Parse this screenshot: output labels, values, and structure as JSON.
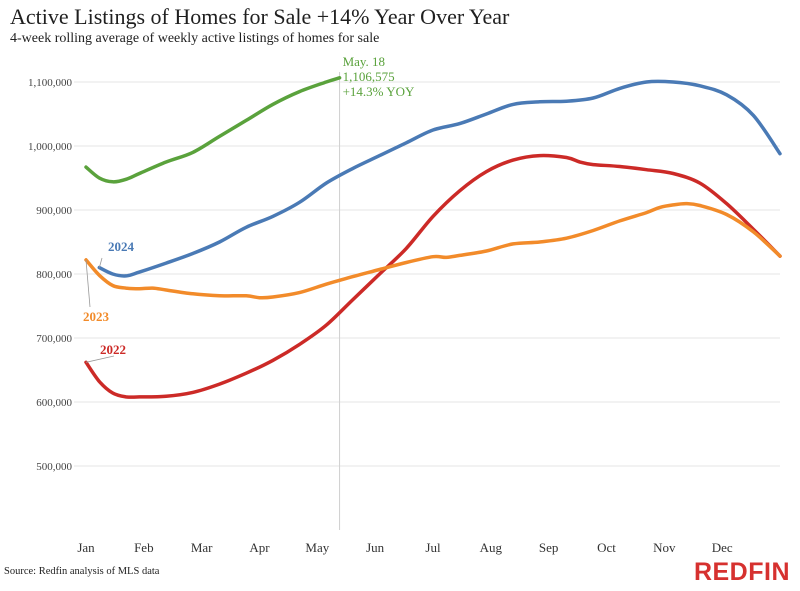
{
  "chart_data": {
    "type": "line",
    "title": "Active Listings of Homes for Sale +14% Year Over Year",
    "subtitle": "4-week rolling average of weekly active listings of homes for sale",
    "source": "Source: Redfin analysis of MLS data",
    "brand": "REDFIN",
    "x_tick_labels": [
      "Jan",
      "Feb",
      "Mar",
      "Apr",
      "May",
      "Jun",
      "Jul",
      "Aug",
      "Sep",
      "Oct",
      "Nov",
      "Dec"
    ],
    "x_unit": "week of year",
    "xlim": [
      0,
      52
    ],
    "ylim": [
      400000,
      1150000
    ],
    "y_ticks": [
      500000,
      600000,
      700000,
      800000,
      900000,
      1000000,
      1100000
    ],
    "y_tick_labels": [
      "500,000",
      "600,000",
      "700,000",
      "800,000",
      "900,000",
      "1,000,000",
      "1,100,000"
    ],
    "grid": {
      "horizontal": true,
      "vertical": false
    },
    "series": [
      {
        "name": "2022",
        "color": "#cc2a27",
        "x": [
          0,
          1,
          2,
          3,
          4,
          6,
          8,
          10,
          12,
          14,
          16,
          18,
          20,
          22,
          24,
          26,
          28,
          30,
          32,
          34,
          36,
          37,
          38,
          40,
          42,
          44,
          46,
          48,
          50,
          52
        ],
        "values": [
          662000,
          632000,
          614000,
          608000,
          608000,
          609000,
          615000,
          628000,
          645000,
          665000,
          690000,
          720000,
          760000,
          800000,
          840000,
          890000,
          930000,
          960000,
          978000,
          985000,
          982000,
          975000,
          971000,
          968000,
          963000,
          957000,
          942000,
          910000,
          870000,
          828000
        ]
      },
      {
        "name": "2023",
        "color": "#f28b2a",
        "x": [
          0,
          1,
          2,
          3,
          4,
          5,
          6,
          8,
          10,
          12,
          13,
          14,
          16,
          18,
          20,
          22,
          24,
          26,
          27,
          28,
          30,
          32,
          34,
          36,
          38,
          40,
          42,
          43,
          44,
          45,
          46,
          48,
          50,
          52
        ],
        "values": [
          822000,
          798000,
          782000,
          778000,
          777000,
          778000,
          775000,
          769000,
          766000,
          766000,
          763000,
          764000,
          771000,
          784000,
          796000,
          807000,
          818000,
          827000,
          826000,
          829000,
          836000,
          847000,
          850000,
          856000,
          868000,
          883000,
          896000,
          904000,
          908000,
          910000,
          907000,
          893000,
          866000,
          828000
        ]
      },
      {
        "name": "2024",
        "color": "#4a7ab5",
        "x": [
          1,
          2,
          3,
          4,
          6,
          8,
          10,
          12,
          14,
          16,
          18,
          20,
          22,
          24,
          26,
          28,
          30,
          32,
          34,
          36,
          38,
          40,
          42,
          44,
          46,
          48,
          50,
          52
        ],
        "values": [
          810000,
          800000,
          797000,
          803000,
          817000,
          832000,
          850000,
          873000,
          890000,
          912000,
          942000,
          965000,
          985000,
          1005000,
          1025000,
          1035000,
          1050000,
          1065000,
          1069000,
          1070000,
          1075000,
          1090000,
          1100000,
          1100000,
          1094000,
          1080000,
          1048000,
          988000
        ]
      },
      {
        "name": "",
        "color": "#5aa23c",
        "x": [
          0,
          1,
          2,
          3,
          4,
          6,
          8,
          10,
          12,
          14,
          16,
          18,
          19
        ],
        "values": [
          967000,
          950000,
          944000,
          948000,
          957000,
          975000,
          990000,
          1015000,
          1040000,
          1065000,
          1085000,
          1100000,
          1106575
        ]
      }
    ],
    "annotation": {
      "x": 19,
      "lines": [
        "May. 18",
        "1,106,575",
        "+14.3% YOY"
      ]
    }
  }
}
